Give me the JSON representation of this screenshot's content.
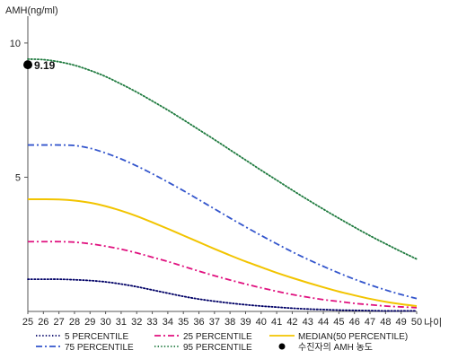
{
  "chart_data": {
    "type": "line",
    "ylabel": "AMH(ng/ml)",
    "xlabel": "나이",
    "x": [
      25,
      26,
      27,
      28,
      29,
      30,
      31,
      32,
      33,
      34,
      35,
      36,
      37,
      38,
      39,
      40,
      41,
      42,
      43,
      44,
      45,
      46,
      47,
      48,
      49,
      50
    ],
    "ylim": [
      0,
      11
    ],
    "xlim": [
      25,
      50
    ],
    "yticks": [
      5,
      10
    ],
    "grid": false,
    "legend_position": "bottom",
    "series": [
      {
        "name": "5 PERCENTILE",
        "color": "#000066",
        "dash": "dotted",
        "values": [
          1.2,
          1.2,
          1.2,
          1.18,
          1.15,
          1.1,
          1.02,
          0.92,
          0.8,
          0.68,
          0.56,
          0.46,
          0.38,
          0.31,
          0.25,
          0.2,
          0.16,
          0.12,
          0.09,
          0.07,
          0.05,
          0.04,
          0.03,
          0.02,
          0.02,
          0.02
        ]
      },
      {
        "name": "25 PERCENTILE",
        "color": "#e0117f",
        "dash": "dashdot",
        "values": [
          2.6,
          2.6,
          2.6,
          2.58,
          2.52,
          2.43,
          2.32,
          2.18,
          2.02,
          1.86,
          1.68,
          1.5,
          1.33,
          1.17,
          1.02,
          0.88,
          0.75,
          0.63,
          0.53,
          0.44,
          0.37,
          0.3,
          0.25,
          0.2,
          0.17,
          0.14
        ]
      },
      {
        "name": "MEDIAN(50 PERCENTILE)",
        "color": "#f2c400",
        "dash": "solid",
        "values": [
          4.18,
          4.18,
          4.17,
          4.13,
          4.05,
          3.92,
          3.75,
          3.55,
          3.32,
          3.08,
          2.83,
          2.58,
          2.33,
          2.09,
          1.86,
          1.65,
          1.44,
          1.25,
          1.07,
          0.9,
          0.74,
          0.6,
          0.47,
          0.36,
          0.27,
          0.2
        ]
      },
      {
        "name": "75 PERCENTILE",
        "color": "#3355cc",
        "dash": "dashdot",
        "values": [
          6.2,
          6.2,
          6.2,
          6.18,
          6.08,
          5.9,
          5.68,
          5.42,
          5.13,
          4.82,
          4.5,
          4.16,
          3.82,
          3.48,
          3.15,
          2.83,
          2.52,
          2.22,
          1.94,
          1.68,
          1.43,
          1.2,
          0.99,
          0.8,
          0.63,
          0.48
        ]
      },
      {
        "name": "95 PERCENTILE",
        "color": "#1e7a3e",
        "dash": "dotted",
        "values": [
          9.4,
          9.38,
          9.3,
          9.17,
          8.98,
          8.75,
          8.47,
          8.17,
          7.84,
          7.5,
          7.14,
          6.77,
          6.4,
          6.02,
          5.64,
          5.26,
          4.89,
          4.52,
          4.16,
          3.81,
          3.47,
          3.14,
          2.82,
          2.52,
          2.23,
          1.95
        ]
      }
    ],
    "marker": {
      "label": "수진자의 AMH 농도",
      "x": 25,
      "y": 9.19,
      "value_label": "9.19",
      "color": "#000000"
    },
    "legend": [
      "5 PERCENTILE",
      "25 PERCENTILE",
      "MEDIAN(50 PERCENTILE)",
      "75 PERCENTILE",
      "95 PERCENTILE",
      "수진자의 AMH 농도"
    ]
  }
}
